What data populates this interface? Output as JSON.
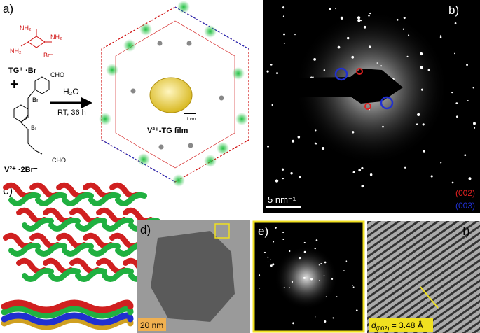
{
  "panels": {
    "a": {
      "label": "a)",
      "reagent1": "TG⁺ ·Br⁻",
      "reagent2": "V²⁺ ·2Br⁻",
      "plus": "+",
      "solvent": "H₂O",
      "conditions": "RT, 36 h",
      "product": "V²⁺-TG film",
      "scale": "1 cm",
      "groups": {
        "nh2": "NH₂",
        "cho": "CHO",
        "br": "Br⁻"
      }
    },
    "b": {
      "label": "b)",
      "scale": "5 nm⁻¹",
      "planes": [
        "(002)",
        "(003)"
      ]
    },
    "c": {
      "label": "c)"
    },
    "d": {
      "label": "d)",
      "scale": "20 nm"
    },
    "e": {
      "label": "e)"
    },
    "f": {
      "label": "f)",
      "spacing": {
        "symbol": "d",
        "plane": "(002)",
        "value": " = 3.48 Å"
      }
    }
  }
}
